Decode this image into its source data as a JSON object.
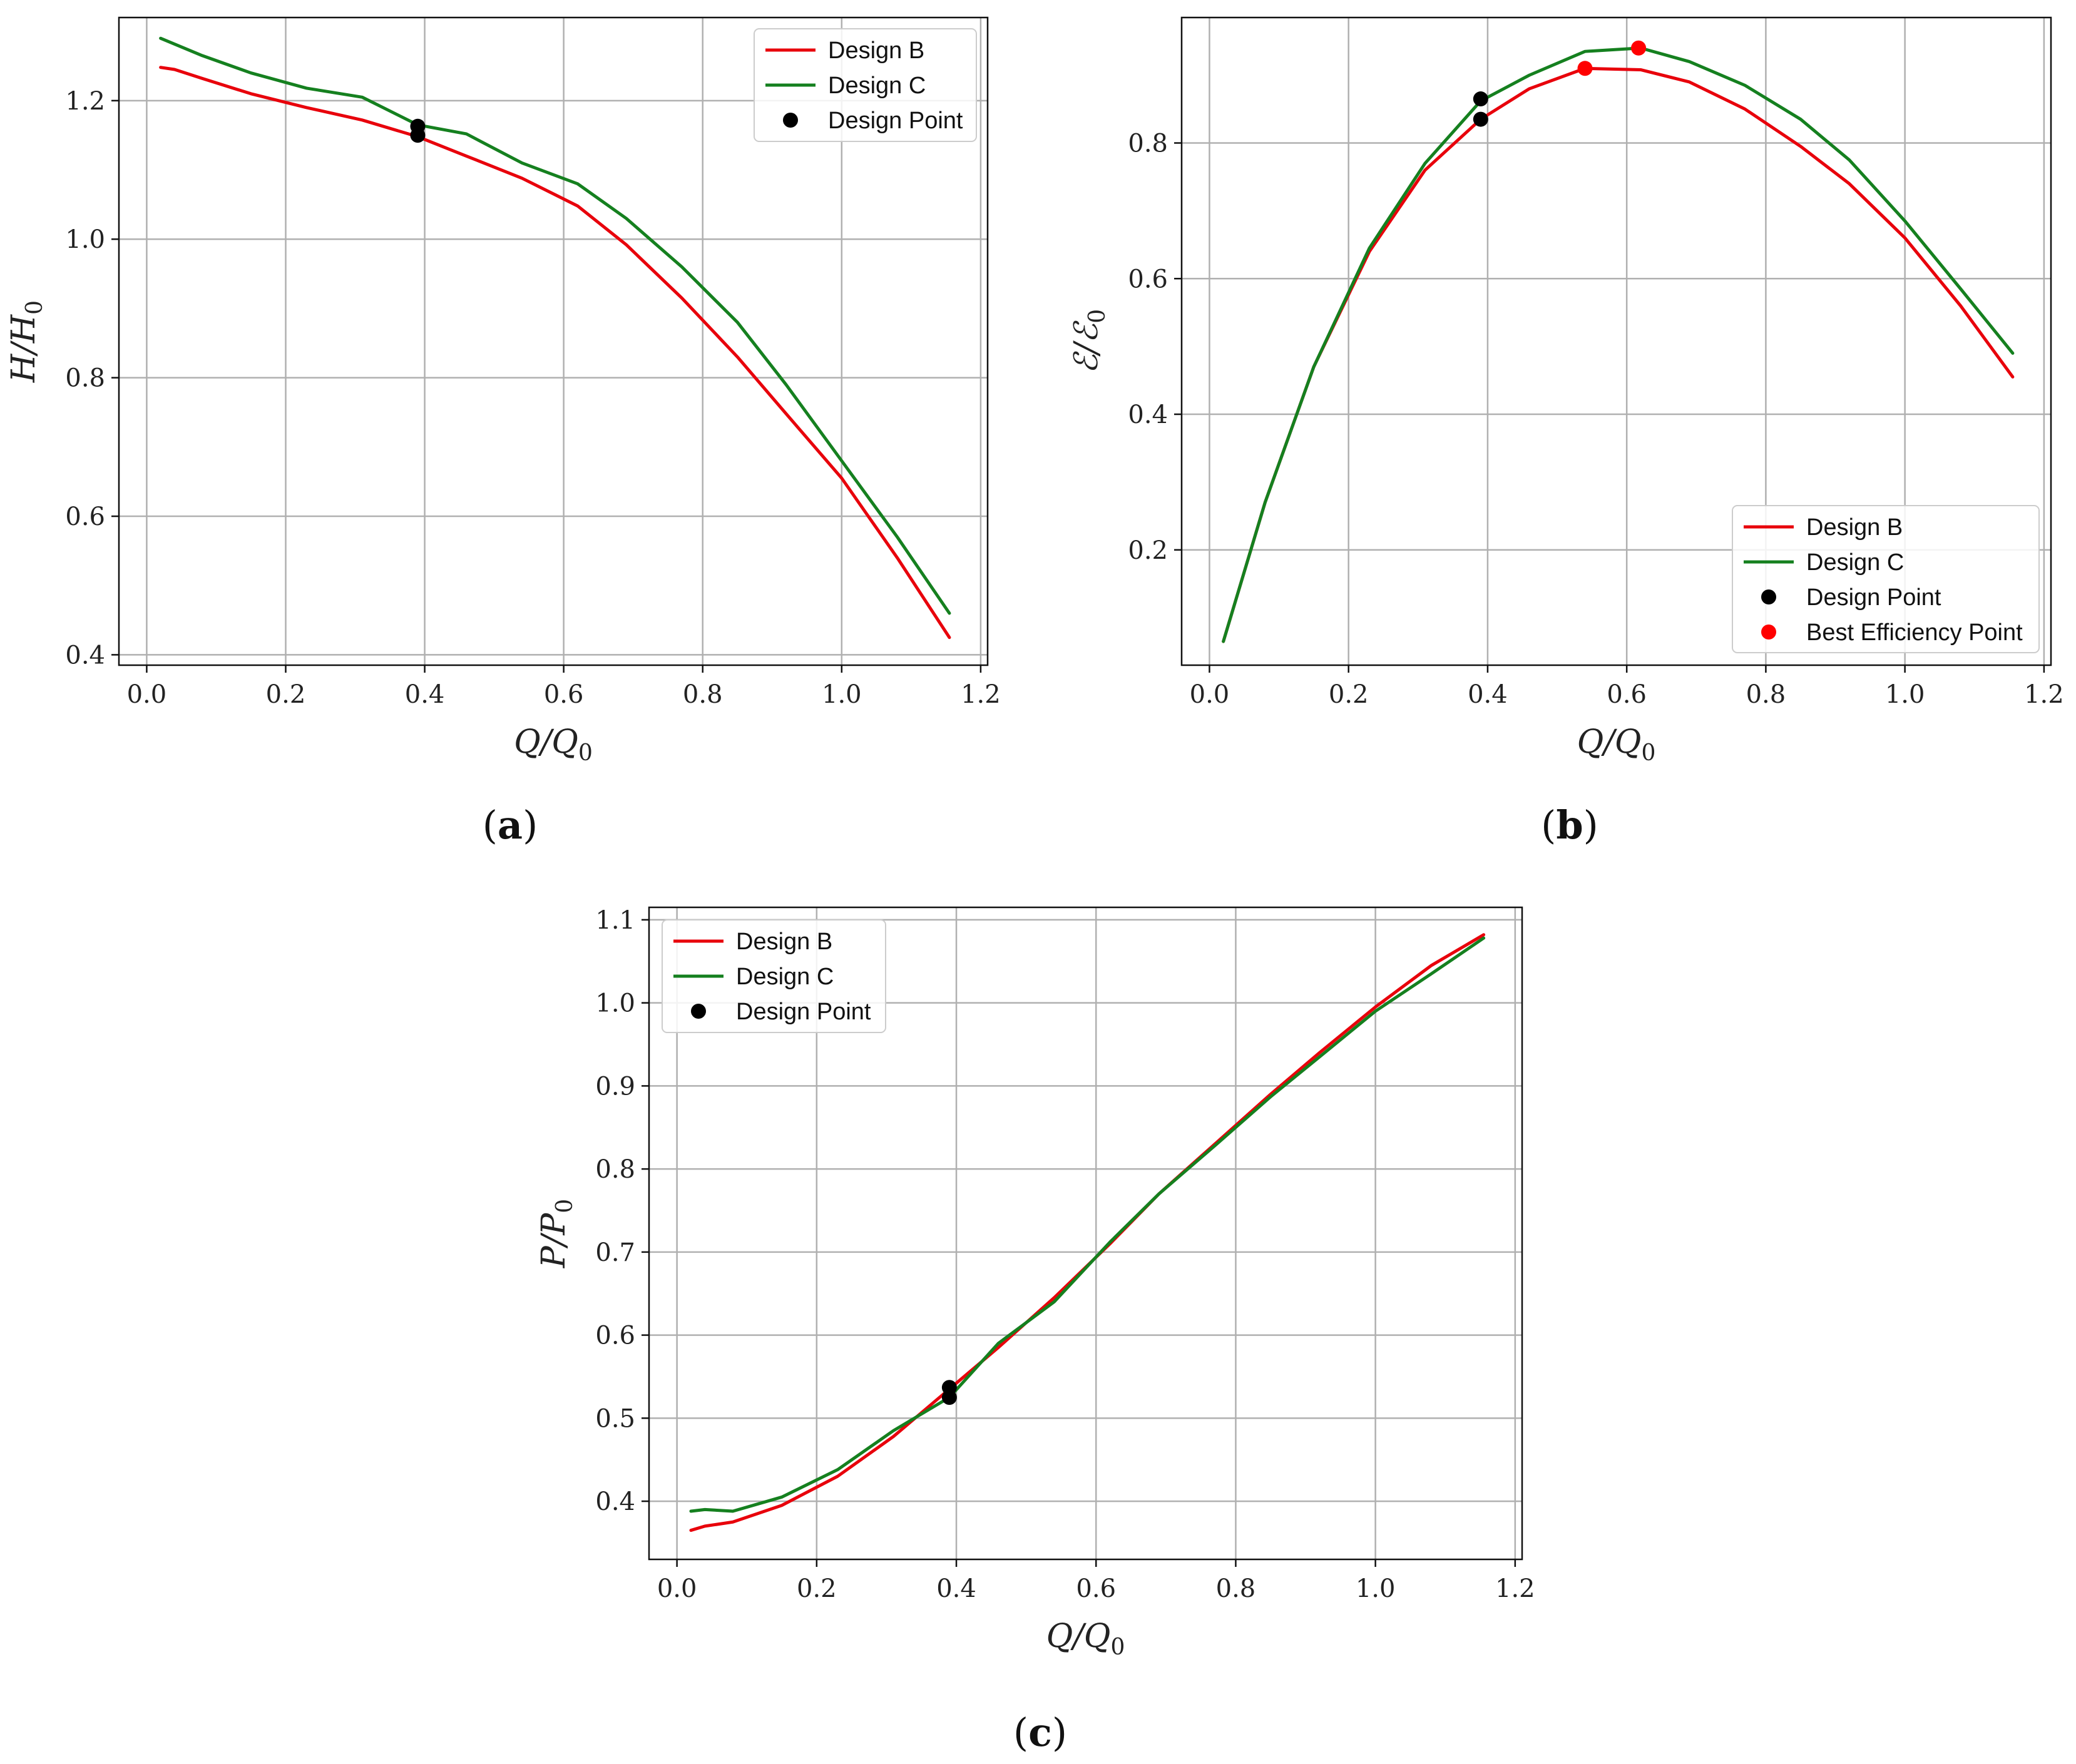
{
  "colors": {
    "design_b": "#e8000b",
    "design_c": "#15801f",
    "design_point": "#000000",
    "best_efficiency": "#ff0000"
  },
  "chart_data": [
    {
      "panel": "(a)",
      "type": "line",
      "xlabel": "Q/Q",
      "xlabel_sub": "0",
      "ylabel": "H/H",
      "ylabel_sub": "0",
      "xlim": [
        -0.04,
        1.21
      ],
      "ylim": [
        0.385,
        1.32
      ],
      "xticks": [
        0.0,
        0.2,
        0.4,
        0.6,
        0.8,
        1.0,
        1.2
      ],
      "xtick_labels": [
        "0.0",
        "0.2",
        "0.4",
        "0.6",
        "0.8",
        "1.0",
        "1.2"
      ],
      "yticks": [
        0.4,
        0.6,
        0.8,
        1.0,
        1.2
      ],
      "ytick_labels": [
        "0.4",
        "0.6",
        "0.8",
        "1.0",
        "1.2"
      ],
      "legend_position": "top-right",
      "series": [
        {
          "name": "Design B",
          "color": "#e8000b",
          "x": [
            0.02,
            0.04,
            0.08,
            0.15,
            0.23,
            0.31,
            0.39,
            0.46,
            0.54,
            0.62,
            0.69,
            0.77,
            0.85,
            0.92,
            1.0,
            1.08,
            1.155
          ],
          "y": [
            1.248,
            1.245,
            1.232,
            1.21,
            1.19,
            1.172,
            1.148,
            1.12,
            1.088,
            1.048,
            0.992,
            0.915,
            0.83,
            0.748,
            0.655,
            0.54,
            0.425
          ]
        },
        {
          "name": "Design C",
          "color": "#15801f",
          "x": [
            0.02,
            0.08,
            0.15,
            0.23,
            0.31,
            0.39,
            0.46,
            0.54,
            0.62,
            0.69,
            0.77,
            0.85,
            0.92,
            1.0,
            1.08,
            1.155
          ],
          "y": [
            1.29,
            1.265,
            1.24,
            1.218,
            1.205,
            1.165,
            1.152,
            1.11,
            1.08,
            1.03,
            0.96,
            0.88,
            0.79,
            0.68,
            0.57,
            0.46
          ]
        }
      ],
      "points": [
        {
          "name": "Design Point",
          "color": "#000000",
          "x": [
            0.39,
            0.39
          ],
          "y": [
            1.163,
            1.15
          ]
        }
      ],
      "legend": [
        "Design B",
        "Design C",
        "Design Point"
      ]
    },
    {
      "panel": "(b)",
      "type": "line",
      "xlabel": "Q/Q",
      "xlabel_sub": "0",
      "ylabel": "ℰ/ℰ",
      "ylabel_sub": "0",
      "xlim": [
        -0.04,
        1.21
      ],
      "ylim": [
        0.03,
        0.985
      ],
      "xticks": [
        0.0,
        0.2,
        0.4,
        0.6,
        0.8,
        1.0,
        1.2
      ],
      "xtick_labels": [
        "0.0",
        "0.2",
        "0.4",
        "0.6",
        "0.8",
        "1.0",
        "1.2"
      ],
      "yticks": [
        0.2,
        0.4,
        0.6,
        0.8
      ],
      "ytick_labels": [
        "0.2",
        "0.4",
        "0.6",
        "0.8"
      ],
      "legend_position": "lower-right",
      "series": [
        {
          "name": "Design B",
          "color": "#e8000b",
          "x": [
            0.02,
            0.08,
            0.15,
            0.23,
            0.31,
            0.39,
            0.46,
            0.54,
            0.62,
            0.69,
            0.77,
            0.85,
            0.92,
            1.0,
            1.08,
            1.155
          ],
          "y": [
            0.065,
            0.27,
            0.47,
            0.64,
            0.76,
            0.835,
            0.88,
            0.91,
            0.908,
            0.89,
            0.85,
            0.795,
            0.74,
            0.66,
            0.56,
            0.455
          ]
        },
        {
          "name": "Design C",
          "color": "#15801f",
          "x": [
            0.02,
            0.08,
            0.15,
            0.23,
            0.31,
            0.39,
            0.46,
            0.54,
            0.62,
            0.69,
            0.77,
            0.85,
            0.92,
            1.0,
            1.08,
            1.155
          ],
          "y": [
            0.065,
            0.27,
            0.47,
            0.645,
            0.77,
            0.862,
            0.9,
            0.935,
            0.94,
            0.92,
            0.885,
            0.835,
            0.775,
            0.685,
            0.585,
            0.49
          ]
        }
      ],
      "points": [
        {
          "name": "Design Point",
          "color": "#000000",
          "x": [
            0.39,
            0.39
          ],
          "y": [
            0.865,
            0.835
          ]
        },
        {
          "name": "Best Efficiency Point",
          "color": "#ff0000",
          "x": [
            0.54,
            0.617
          ],
          "y": [
            0.91,
            0.94
          ]
        }
      ],
      "legend": [
        "Design B",
        "Design C",
        "Design Point",
        "Best Efficiency Point"
      ]
    },
    {
      "panel": "(c)",
      "type": "line",
      "xlabel": "Q/Q",
      "xlabel_sub": "0",
      "ylabel": "P/P",
      "ylabel_sub": "0",
      "xlim": [
        -0.04,
        1.21
      ],
      "ylim": [
        0.33,
        1.115
      ],
      "xticks": [
        0.0,
        0.2,
        0.4,
        0.6,
        0.8,
        1.0,
        1.2
      ],
      "xtick_labels": [
        "0.0",
        "0.2",
        "0.4",
        "0.6",
        "0.8",
        "1.0",
        "1.2"
      ],
      "yticks": [
        0.4,
        0.5,
        0.6,
        0.7,
        0.8,
        0.9,
        1.0,
        1.1
      ],
      "ytick_labels": [
        "0.4",
        "0.5",
        "0.6",
        "0.7",
        "0.8",
        "0.9",
        "1.0",
        "1.1"
      ],
      "legend_position": "top-left",
      "series": [
        {
          "name": "Design B",
          "color": "#e8000b",
          "x": [
            0.02,
            0.04,
            0.08,
            0.15,
            0.23,
            0.31,
            0.39,
            0.46,
            0.54,
            0.62,
            0.69,
            0.77,
            0.85,
            0.92,
            1.0,
            1.08,
            1.155
          ],
          "y": [
            0.365,
            0.37,
            0.375,
            0.395,
            0.43,
            0.478,
            0.535,
            0.585,
            0.645,
            0.71,
            0.77,
            0.83,
            0.89,
            0.94,
            0.995,
            1.045,
            1.082
          ]
        },
        {
          "name": "Design C",
          "color": "#15801f",
          "x": [
            0.02,
            0.04,
            0.08,
            0.15,
            0.23,
            0.31,
            0.39,
            0.46,
            0.54,
            0.62,
            0.69,
            0.77,
            0.85,
            0.92,
            1.0,
            1.08,
            1.155
          ],
          "y": [
            0.388,
            0.39,
            0.388,
            0.405,
            0.438,
            0.485,
            0.525,
            0.59,
            0.64,
            0.712,
            0.77,
            0.828,
            0.887,
            0.935,
            0.99,
            1.035,
            1.078
          ]
        }
      ],
      "points": [
        {
          "name": "Design Point",
          "color": "#000000",
          "x": [
            0.39,
            0.39
          ],
          "y": [
            0.537,
            0.525
          ]
        }
      ],
      "legend": [
        "Design B",
        "Design C",
        "Design Point"
      ]
    }
  ]
}
